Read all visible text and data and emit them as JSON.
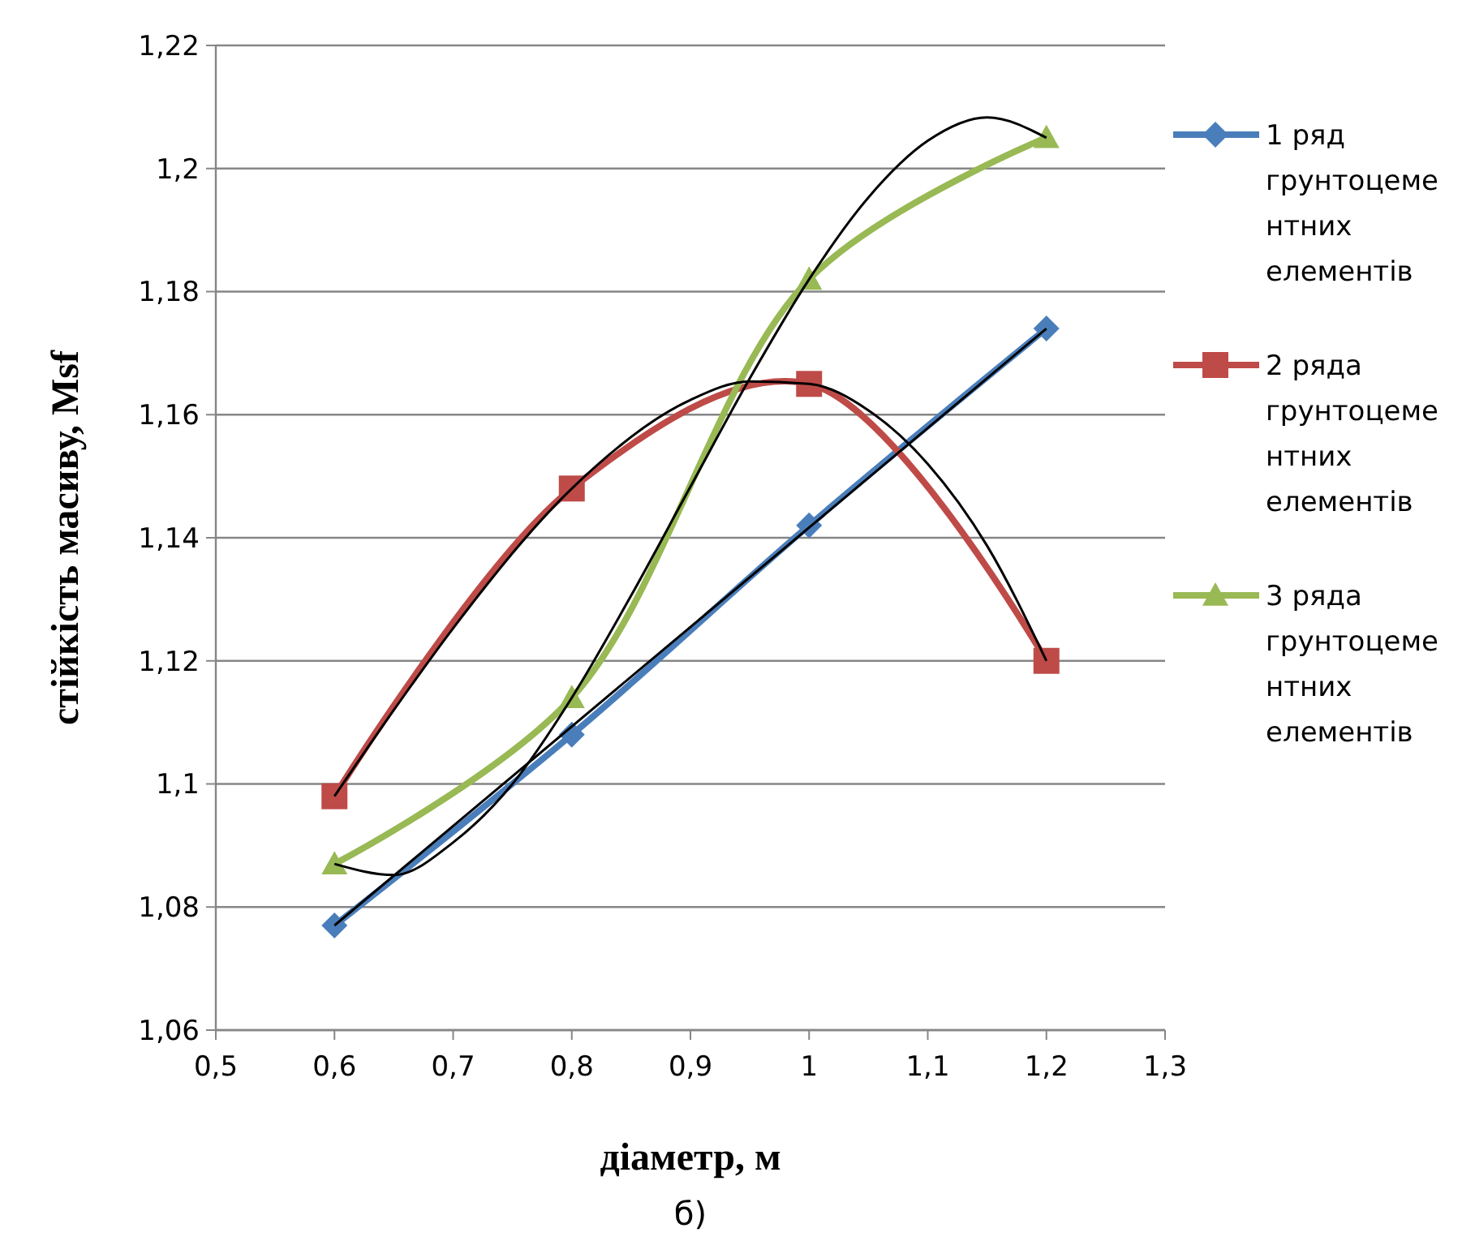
{
  "chart_data": {
    "type": "line",
    "xlabel": "діаметр, м",
    "ylabel": "стійкість масиву, Msf",
    "xlim": [
      0.5,
      1.3
    ],
    "xticks": [
      {
        "value": 0.5,
        "label": "0,5"
      },
      {
        "value": 0.6,
        "label": "0,6"
      },
      {
        "value": 0.7,
        "label": "0,7"
      },
      {
        "value": 0.8,
        "label": "0,8"
      },
      {
        "value": 0.9,
        "label": "0,9"
      },
      {
        "value": 1,
        "label": "1"
      },
      {
        "value": 1.1,
        "label": "1,1"
      },
      {
        "value": 1.2,
        "label": "1,2"
      },
      {
        "value": 1.3,
        "label": "1,3"
      }
    ],
    "ylim": [
      1.06,
      1.22
    ],
    "yticks": [
      {
        "value": 1.06,
        "label": "1,06"
      },
      {
        "value": 1.08,
        "label": "1,08"
      },
      {
        "value": 1.1,
        "label": "1,1"
      },
      {
        "value": 1.12,
        "label": "1,12"
      },
      {
        "value": 1.14,
        "label": "1,14"
      },
      {
        "value": 1.16,
        "label": "1,16"
      },
      {
        "value": 1.18,
        "label": "1,18"
      },
      {
        "value": 1.2,
        "label": "1,2"
      },
      {
        "value": 1.22,
        "label": "1,22"
      }
    ],
    "grid": "y",
    "legend": "right",
    "series": [
      {
        "name": "1 ряд грунтоцементних елементів",
        "color": "#4a7ebb",
        "marker": "diamond",
        "x": [
          0.6,
          0.8,
          1.0,
          1.2
        ],
        "values": [
          1.077,
          1.108,
          1.142,
          1.174
        ]
      },
      {
        "name": "2 ряда грунтоцементних елементів",
        "color": "#be4b48",
        "marker": "square",
        "x": [
          0.6,
          0.8,
          1.0,
          1.2
        ],
        "values": [
          1.098,
          1.148,
          1.165,
          1.12
        ]
      },
      {
        "name": "3 ряда грунтоцементних елементів",
        "color": "#98b954",
        "marker": "triangle",
        "x": [
          0.6,
          0.8,
          1.0,
          1.2
        ],
        "values": [
          1.087,
          1.114,
          1.182,
          1.205
        ]
      },
      {
        "color": "#000000",
        "marker": "none",
        "x": [
          0.6,
          1.2
        ],
        "values": [
          1.077,
          1.174
        ]
      },
      {
        "color": "#000000",
        "marker": "none",
        "x": [
          0.6,
          0.65,
          0.7,
          0.8,
          0.9,
          0.95,
          1.0,
          1.05,
          1.1,
          1.15,
          1.2
        ],
        "values": [
          1.098,
          1.112,
          1.1253,
          1.148,
          1.1624,
          1.1654,
          1.165,
          1.1607,
          1.152,
          1.1387,
          1.12
        ]
      },
      {
        "color": "#000000",
        "marker": "none",
        "x": [
          0.6,
          0.65,
          0.7,
          0.75,
          0.8,
          0.85,
          0.9,
          0.95,
          1.0,
          1.05,
          1.1,
          1.15,
          1.2
        ],
        "values": [
          1.087,
          1.0852,
          1.0905,
          1.1,
          1.114,
          1.1306,
          1.1483,
          1.1659,
          1.182,
          1.1953,
          1.2045,
          1.2083,
          1.205
        ]
      }
    ],
    "annotations": [
      "б)"
    ]
  }
}
